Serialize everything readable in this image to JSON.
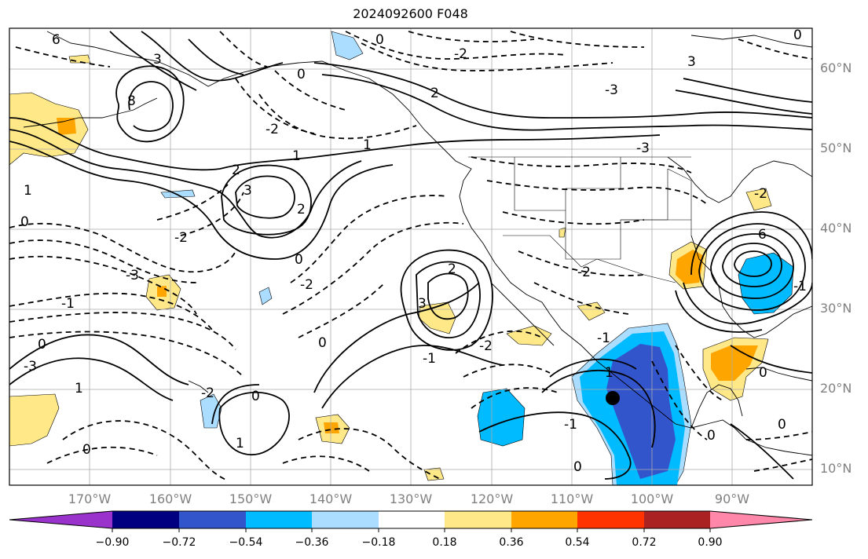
{
  "title": "2024092600 F048",
  "lat_labels": [
    "60°N",
    "50°N",
    "40°N",
    "30°N",
    "20°N",
    "10°N"
  ],
  "lon_labels": [
    "170°W",
    "160°W",
    "150°W",
    "140°W",
    "130°W",
    "120°W",
    "110°W",
    "100°W",
    "90°W"
  ],
  "colorbar": {
    "ticks": [
      "−0.90",
      "−0.72",
      "−0.54",
      "−0.36",
      "−0.18",
      "0.18",
      "0.36",
      "0.54",
      "0.72",
      "0.90"
    ],
    "colors": [
      "#9933cc",
      "#000080",
      "#3355cc",
      "#00bbff",
      "#aaddff",
      "#ffffff",
      "#ffe888",
      "#ffa500",
      "#ff3300",
      "#aa2222",
      "#ff88aa"
    ]
  },
  "contour_labels": [
    "6",
    "8",
    "3",
    "0",
    "-2",
    "2",
    "-3",
    "0",
    "1",
    "2",
    "-2",
    "3",
    "1",
    "-3",
    "-1",
    "0",
    "-3",
    "-2",
    "2",
    "3",
    "0",
    "-1",
    "0",
    "1",
    "0",
    "-2",
    "-3",
    "6",
    "-2",
    "0",
    "3",
    "-1",
    "0",
    "-2",
    "0",
    "1",
    "2",
    "-1",
    "0",
    "1",
    "0",
    "-2",
    "1",
    "0",
    "-1",
    "0",
    "-2"
  ]
}
